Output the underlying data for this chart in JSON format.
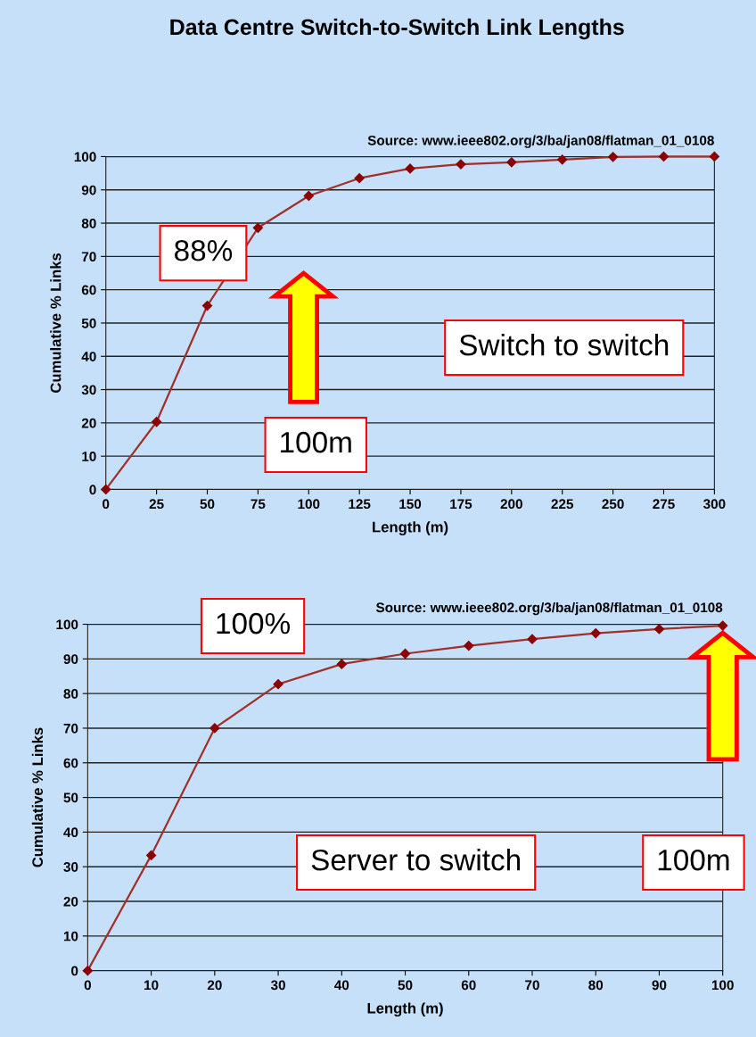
{
  "chart_data": [
    {
      "type": "line",
      "title": "Data Centre Switch-to-Switch Link Lengths",
      "xlabel": "Length (m)",
      "ylabel": "Cumulative % Links",
      "x": [
        0,
        25,
        50,
        75,
        100,
        125,
        150,
        175,
        200,
        225,
        250,
        275,
        300
      ],
      "series": [
        {
          "color": "#a0302a",
          "values": [
            0,
            20.3,
            55.2,
            78.6,
            88.2,
            93.5,
            96.4,
            97.7,
            98.3,
            99.1,
            99.9,
            100,
            100
          ]
        }
      ],
      "xlim": [
        0,
        300
      ],
      "xticks": [
        0,
        25,
        50,
        75,
        100,
        125,
        150,
        175,
        200,
        225,
        250,
        275,
        300
      ],
      "ylim": [
        0,
        100
      ],
      "yticks": [
        0,
        10,
        20,
        30,
        40,
        50,
        60,
        70,
        80,
        90,
        100
      ],
      "grid": "y",
      "marker": "diamond",
      "line_style": "solid",
      "annotations": [
        "Source: www.ieee802.org/3/ba/jan08/flatman_01_0108",
        "88%",
        "100m",
        "Switch to switch"
      ]
    },
    {
      "type": "line",
      "xlabel": "Length (m)",
      "ylabel": "Cumulative % Links",
      "x": [
        0,
        10,
        20,
        30,
        40,
        50,
        60,
        70,
        80,
        90,
        100
      ],
      "series": [
        {
          "color": "#a0302a",
          "values": [
            0,
            33.3,
            70,
            82.7,
            88.5,
            91.5,
            93.8,
            95.7,
            97.4,
            98.6,
            99.6
          ]
        }
      ],
      "xlim": [
        0,
        100
      ],
      "xticks": [
        0,
        10,
        20,
        30,
        40,
        50,
        60,
        70,
        80,
        90,
        100
      ],
      "ylim": [
        0,
        100
      ],
      "yticks": [
        0,
        10,
        20,
        30,
        40,
        50,
        60,
        70,
        80,
        90,
        100
      ],
      "grid": "y",
      "marker": "diamond",
      "line_style": "solid",
      "annotations": [
        "Source: www.ieee802.org/3/ba/jan08/flatman_01_0108",
        "100%",
        "Server to switch",
        "100m"
      ]
    }
  ]
}
